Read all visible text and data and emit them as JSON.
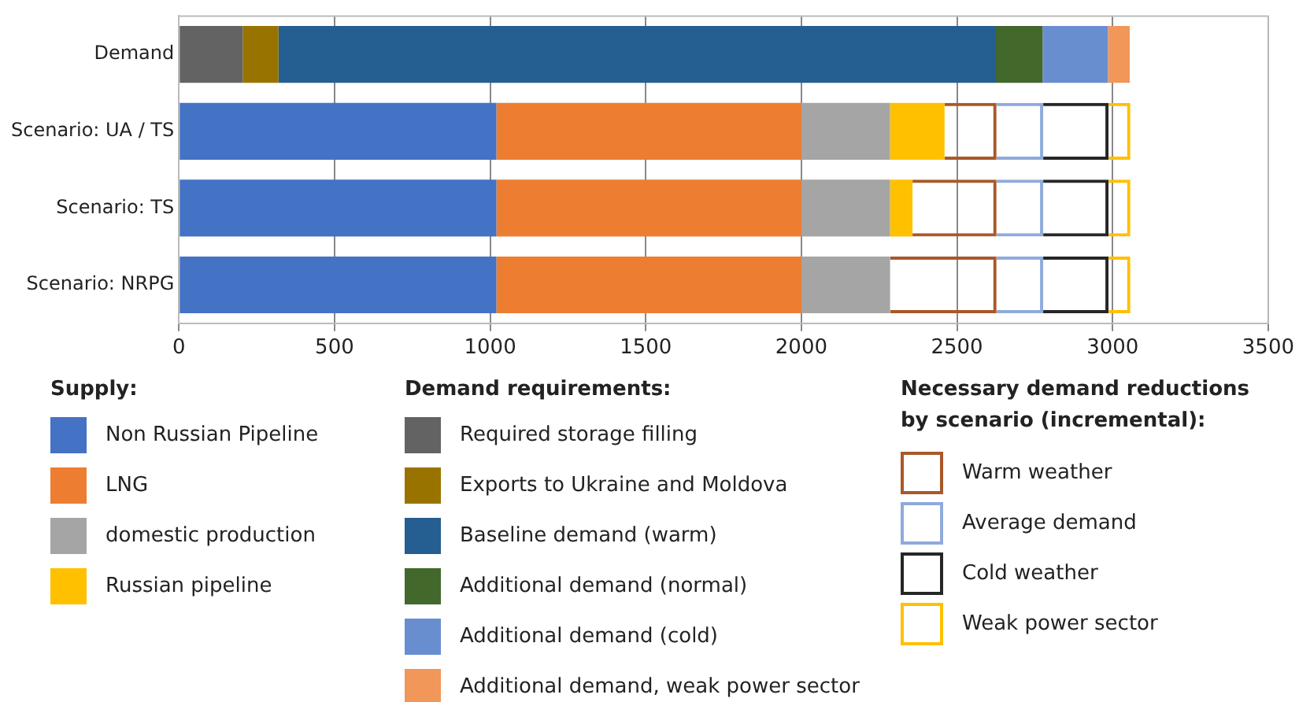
{
  "chart_data": {
    "type": "bar",
    "orientation": "horizontal",
    "stacked": true,
    "categories": [
      "Demand",
      "Scenario: UA / TS",
      "Scenario: TS",
      "Scenario: NRPG"
    ],
    "xlim": [
      0,
      3500
    ],
    "xticks": [
      0,
      500,
      1000,
      1500,
      2000,
      2500,
      3000,
      3500
    ],
    "grid": "x",
    "legend": "bottom",
    "annotations": [
      "Supply:",
      "Demand requirements:",
      "Necessary demand reductions by scenario (incremental):"
    ],
    "series": [
      {
        "name": "Non Russian Pipeline",
        "color": "#4472c4",
        "values": [
          null,
          1020,
          1020,
          1020
        ]
      },
      {
        "name": "LNG",
        "color": "#ed7d31",
        "values": [
          null,
          980,
          980,
          980
        ]
      },
      {
        "name": "domestic production",
        "color": "#a5a5a5",
        "values": [
          null,
          285,
          285,
          285
        ]
      },
      {
        "name": "Russian pipeline",
        "color": "#ffc000",
        "values": [
          null,
          175,
          72,
          null
        ]
      },
      {
        "name": "Required storage filling",
        "color": "#636363",
        "values": [
          205,
          null,
          null,
          null
        ]
      },
      {
        "name": "Exports to Ukraine and Moldova",
        "color": "#997300",
        "values": [
          115,
          null,
          null,
          null
        ]
      },
      {
        "name": "Baseline demand (warm)",
        "color": "#255e91",
        "values": [
          2305,
          null,
          null,
          null
        ]
      },
      {
        "name": "Additional demand (normal)",
        "color": "#43682b",
        "values": [
          150,
          null,
          null,
          null
        ]
      },
      {
        "name": "Additional demand (cold)",
        "color": "#698ed0",
        "values": [
          210,
          null,
          null,
          null
        ]
      },
      {
        "name": "Additional demand, weak power sector",
        "color": "#f1975a",
        "values": [
          70,
          null,
          null,
          null
        ]
      },
      {
        "name": "Warm weather",
        "color": "#a9582a",
        "line_style": "solid",
        "values": [
          null,
          167,
          270,
          342
        ]
      },
      {
        "name": "Average demand",
        "color": "#8faadc",
        "line_style": "solid",
        "values": [
          null,
          150,
          150,
          150
        ]
      },
      {
        "name": "Cold weather",
        "color": "#262626",
        "line_style": "solid",
        "values": [
          null,
          210,
          210,
          210
        ]
      },
      {
        "name": "Weak power sector",
        "color": "#ffc000",
        "line_style": "solid",
        "values": [
          null,
          70,
          70,
          70
        ]
      }
    ]
  }
}
